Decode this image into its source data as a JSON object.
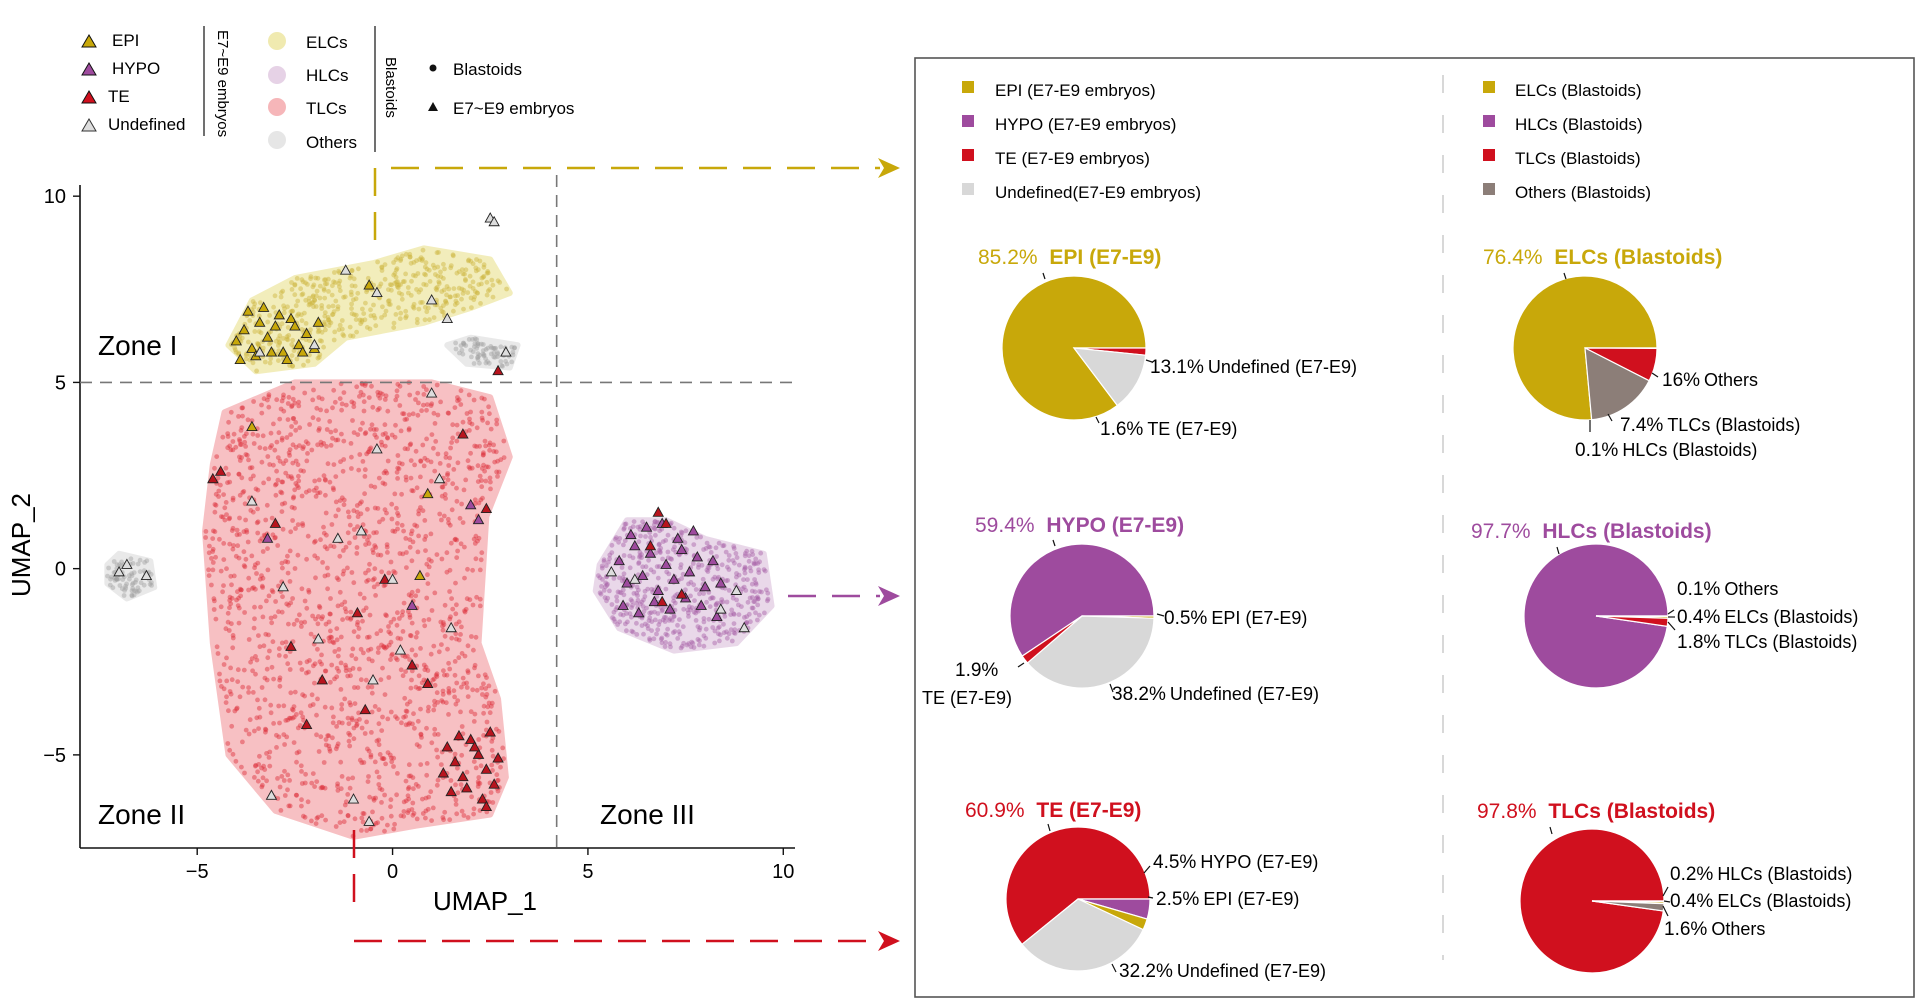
{
  "colors": {
    "EPI": "#c8a80a",
    "HYPO": "#9e4b9e",
    "TE": "#d0101e",
    "Undefined": "#d8d8d8",
    "ELCs": "#f0eab0",
    "HLCs": "#e6d2e6",
    "TLCs": "#f6b6b9",
    "Others_soft": "#e6e6e6",
    "Others": "#8c7e78",
    "pts_te": "#dc2d37",
    "pts_epi": "#cbb43c",
    "pts_hypo": "#a660a6",
    "pts_grey": "#a0a0a0"
  },
  "legend_left": {
    "embryo_items": [
      "EPI",
      "HYPO",
      "TE",
      "Undefined"
    ],
    "embryo_group": "E7~E9 embryos",
    "blastoid_items": [
      "ELCs",
      "HLCs",
      "TLCs",
      "Others"
    ],
    "blastoid_group": "Blastoids",
    "shape_items": [
      "Blastoids",
      "E7~E9 embryos"
    ]
  },
  "zones": [
    "Zone I",
    "Zone II",
    "Zone III"
  ],
  "legend_right": {
    "embryos": [
      "EPI (E7-E9 embryos)",
      "HYPO (E7-E9 embryos)",
      "TE (E7-E9 embryos)",
      "Undefined(E7-E9 embryos)"
    ],
    "blastoids": [
      "ELCs (Blastoids)",
      "HLCs (Blastoids)",
      "TLCs (Blastoids)",
      "Others (Blastoids)"
    ]
  },
  "chart_data": [
    {
      "type": "scatter",
      "xlabel": "UMAP_1",
      "ylabel": "UMAP_2",
      "xlim": [
        -8,
        10.3
      ],
      "ylim": [
        -7.5,
        10.3
      ],
      "xticks": [
        -5,
        0,
        5,
        10
      ],
      "yticks": [
        10,
        5,
        0,
        -5
      ],
      "xtick_labels": [
        "−5",
        "0",
        "5",
        "10"
      ],
      "ytick_labels": [
        "10",
        "5",
        "0",
        "−5"
      ],
      "dividers": {
        "x": 4.2,
        "y": 5
      },
      "blastoid_clusters": [
        {
          "label": "TLCs",
          "polygon": [
            [
              -4.3,
              4.2
            ],
            [
              -2.5,
              5.0
            ],
            [
              1.0,
              5.0
            ],
            [
              2.5,
              4.6
            ],
            [
              3.0,
              3.0
            ],
            [
              2.4,
              1.4
            ],
            [
              2.2,
              -2.0
            ],
            [
              2.7,
              -3.5
            ],
            [
              2.9,
              -5.6
            ],
            [
              2.5,
              -6.6
            ],
            [
              0.6,
              -6.9
            ],
            [
              -1.0,
              -7.2
            ],
            [
              -3.0,
              -6.5
            ],
            [
              -4.2,
              -5.0
            ],
            [
              -4.6,
              -2.0
            ],
            [
              -4.8,
              1.0
            ],
            [
              -4.6,
              2.8
            ]
          ]
        },
        {
          "label": "ELCs",
          "polygon": [
            [
              -4.2,
              6.0
            ],
            [
              -3.6,
              7.2
            ],
            [
              -2.5,
              7.8
            ],
            [
              -0.5,
              8.2
            ],
            [
              0.8,
              8.6
            ],
            [
              2.5,
              8.3
            ],
            [
              3.0,
              7.4
            ],
            [
              2.0,
              7.0
            ],
            [
              0.8,
              6.6
            ],
            [
              -1.2,
              6.2
            ],
            [
              -2.0,
              5.5
            ],
            [
              -3.5,
              5.3
            ]
          ]
        },
        {
          "label": "HLCs",
          "polygon": [
            [
              5.3,
              0.1
            ],
            [
              6.0,
              1.3
            ],
            [
              7.0,
              1.3
            ],
            [
              8.0,
              0.8
            ],
            [
              9.5,
              0.4
            ],
            [
              9.7,
              -1.0
            ],
            [
              8.8,
              -2.0
            ],
            [
              7.2,
              -2.2
            ],
            [
              5.8,
              -1.6
            ],
            [
              5.2,
              -0.6
            ]
          ]
        },
        {
          "label": "Others",
          "polygon": [
            [
              -7.3,
              0.1
            ],
            [
              -7.0,
              0.4
            ],
            [
              -6.2,
              0.2
            ],
            [
              -6.1,
              -0.5
            ],
            [
              -6.8,
              -0.8
            ],
            [
              -7.3,
              -0.4
            ]
          ]
        },
        {
          "label": "Others",
          "polygon": [
            [
              1.4,
              6.0
            ],
            [
              2.0,
              6.2
            ],
            [
              3.2,
              6.0
            ],
            [
              3.0,
              5.4
            ],
            [
              1.9,
              5.5
            ]
          ]
        }
      ],
      "embryo_points": [
        {
          "label": "EPI",
          "x": [
            -4.0,
            -3.8,
            -3.6,
            -3.4,
            -3.2,
            -3.0,
            -2.8,
            -2.6,
            -2.4,
            -2.2,
            -2.0,
            -3.9,
            -3.5,
            -3.1,
            -2.7,
            -2.3,
            -1.9,
            -3.7,
            -3.3,
            -2.9,
            -2.5,
            -0.6,
            0.9,
            -3.6,
            0.7
          ],
          "y": [
            6.1,
            6.4,
            5.9,
            6.6,
            6.2,
            6.5,
            5.8,
            6.7,
            6.0,
            6.3,
            5.9,
            5.6,
            5.7,
            5.8,
            5.6,
            5.8,
            6.6,
            6.9,
            7.0,
            6.8,
            6.5,
            7.6,
            2.0,
            3.8,
            -0.2
          ]
        },
        {
          "label": "HYPO",
          "x": [
            5.8,
            6.0,
            6.2,
            6.4,
            6.6,
            6.8,
            7.0,
            7.2,
            7.4,
            7.6,
            7.8,
            8.0,
            8.2,
            8.4,
            5.9,
            6.3,
            6.7,
            7.1,
            7.5,
            7.9,
            8.3,
            6.1,
            6.5,
            6.9,
            7.3,
            7.7,
            2.0,
            2.2,
            0.5,
            -3.2
          ],
          "y": [
            0.2,
            -0.4,
            0.6,
            -0.2,
            0.4,
            -0.6,
            0.1,
            -0.3,
            0.5,
            -0.1,
            0.3,
            -0.5,
            0.2,
            -0.4,
            -1.0,
            -1.2,
            -0.9,
            -1.1,
            -0.8,
            -1.0,
            -1.3,
            0.9,
            1.1,
            1.2,
            0.8,
            1.0,
            1.7,
            1.3,
            -1.0,
            0.8
          ]
        },
        {
          "label": "TE",
          "x": [
            1.4,
            1.6,
            1.8,
            2.0,
            2.2,
            2.4,
            2.6,
            1.5,
            1.9,
            2.3,
            2.7,
            1.7,
            2.1,
            2.5,
            1.3,
            2.4,
            -4.6,
            -4.4,
            -3.0,
            -2.6,
            -1.8,
            -0.9,
            -0.2,
            0.5,
            1.8,
            2.4,
            -2.2,
            -0.7,
            0.9,
            2.7,
            6.8,
            7.0,
            6.6,
            6.9,
            7.4
          ],
          "y": [
            -4.8,
            -5.2,
            -5.6,
            -4.6,
            -5.0,
            -5.4,
            -5.8,
            -6.0,
            -5.9,
            -6.2,
            -5.1,
            -4.5,
            -4.8,
            -4.4,
            -5.5,
            -6.4,
            2.4,
            2.6,
            1.2,
            -2.1,
            -3.0,
            -1.2,
            -0.3,
            -2.6,
            3.6,
            1.6,
            -4.2,
            -3.8,
            -3.1,
            5.3,
            1.5,
            1.2,
            0.6,
            -0.9,
            -0.7
          ]
        },
        {
          "label": "Undefined",
          "x": [
            -3.4,
            -2.0,
            -1.2,
            -0.4,
            1.0,
            1.4,
            1.2,
            0.0,
            -0.8,
            -2.8,
            -3.6,
            -1.9,
            2.5,
            2.6,
            2.9,
            -7.0,
            -6.8,
            -6.3,
            5.6,
            6.2,
            8.8,
            9.0,
            8.4,
            1.0,
            -0.4,
            -1.4,
            -0.5,
            0.2,
            1.5,
            -0.6,
            -3.1,
            -1.0
          ],
          "y": [
            5.8,
            6.0,
            8.0,
            7.4,
            7.2,
            6.7,
            2.4,
            -0.3,
            1.0,
            -0.5,
            1.8,
            -1.9,
            9.4,
            9.3,
            5.8,
            -0.1,
            0.1,
            -0.2,
            -0.1,
            -0.3,
            -0.6,
            -1.6,
            -1.1,
            4.7,
            3.2,
            0.8,
            -3.0,
            -2.2,
            -1.6,
            -6.8,
            -6.1,
            -6.2
          ]
        }
      ]
    },
    {
      "type": "pie",
      "title": "EPI (E7-E9)",
      "main_label": "85.2%",
      "slices": [
        {
          "name": "EPI",
          "value": 85.2
        },
        {
          "name": "TE",
          "value": 1.6
        },
        {
          "name": "Undefined",
          "value": 13.1
        }
      ],
      "labels": [
        {
          "pct": "13.1%",
          "text": "Undefined (E7-E9)"
        },
        {
          "pct": "1.6%",
          "text": "TE (E7-E9)"
        }
      ]
    },
    {
      "type": "pie",
      "title": "ELCs (Blastoids)",
      "main_label": "76.4%",
      "slices": [
        {
          "name": "ELCs",
          "value": 76.4
        },
        {
          "name": "HLCs",
          "value": 0.1
        },
        {
          "name": "TLCs",
          "value": 7.4
        },
        {
          "name": "Others",
          "value": 16
        }
      ],
      "labels": [
        {
          "pct": "16%",
          "text": "Others"
        },
        {
          "pct": "7.4%",
          "text": "TLCs (Blastoids)"
        },
        {
          "pct": "0.1%",
          "text": "HLCs (Blastoids)"
        }
      ]
    },
    {
      "type": "pie",
      "title": "HYPO (E7-E9)",
      "main_label": "59.4%",
      "slices": [
        {
          "name": "HYPO",
          "value": 59.4
        },
        {
          "name": "EPI",
          "value": 0.5
        },
        {
          "name": "Undefined",
          "value": 38.2
        },
        {
          "name": "TE",
          "value": 1.9
        }
      ],
      "labels": [
        {
          "pct": "0.5%",
          "text": "EPI (E7-E9)"
        },
        {
          "pct": "38.2%",
          "text": "Undefined (E7-E9)"
        },
        {
          "pct": "1.9%",
          "text": "TE (E7-E9)"
        }
      ]
    },
    {
      "type": "pie",
      "title": "HLCs (Blastoids)",
      "main_label": "97.7%",
      "slices": [
        {
          "name": "HLCs",
          "value": 97.7
        },
        {
          "name": "Others",
          "value": 0.1
        },
        {
          "name": "ELCs",
          "value": 0.4
        },
        {
          "name": "TLCs",
          "value": 1.8
        }
      ],
      "labels": [
        {
          "pct": "0.1%",
          "text": "Others"
        },
        {
          "pct": "0.4%",
          "text": "ELCs (Blastoids)"
        },
        {
          "pct": "1.8%",
          "text": "TLCs (Blastoids)"
        }
      ]
    },
    {
      "type": "pie",
      "title": "TE (E7-E9)",
      "main_label": "60.9%",
      "slices": [
        {
          "name": "TE",
          "value": 60.9
        },
        {
          "name": "HYPO",
          "value": 4.5
        },
        {
          "name": "EPI",
          "value": 2.5
        },
        {
          "name": "Undefined",
          "value": 32.2
        }
      ],
      "labels": [
        {
          "pct": "4.5%",
          "text": "HYPO (E7-E9)"
        },
        {
          "pct": "2.5%",
          "text": "EPI (E7-E9)"
        },
        {
          "pct": "32.2%",
          "text": "Undefined (E7-E9)"
        }
      ]
    },
    {
      "type": "pie",
      "title": "TLCs (Blastoids)",
      "main_label": "97.8%",
      "slices": [
        {
          "name": "TLCs",
          "value": 97.8
        },
        {
          "name": "HLCs",
          "value": 0.2
        },
        {
          "name": "ELCs",
          "value": 0.4
        },
        {
          "name": "Others",
          "value": 1.6
        }
      ],
      "labels": [
        {
          "pct": "0.2%",
          "text": "HLCs (Blastoids)"
        },
        {
          "pct": "0.4%",
          "text": "ELCs (Blastoids)"
        },
        {
          "pct": "1.6%",
          "text": "Others"
        }
      ]
    }
  ]
}
